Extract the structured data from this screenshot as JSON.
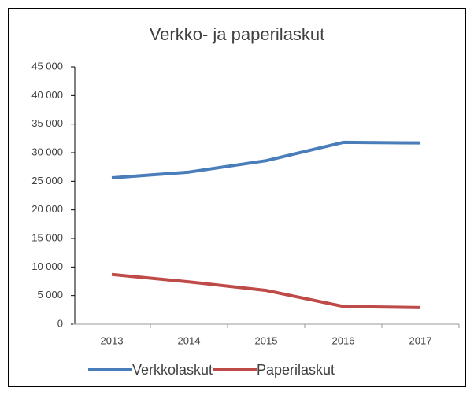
{
  "chart_data": {
    "type": "line",
    "title": "Verkko- ja paperilaskut",
    "categories": [
      "2013",
      "2014",
      "2015",
      "2016",
      "2017"
    ],
    "series": [
      {
        "name": "Verkkolaskut",
        "color": "#4a7ebb",
        "values": [
          25600,
          26600,
          28600,
          31800,
          31700
        ]
      },
      {
        "name": "Paperilaskut",
        "color": "#be4b48",
        "values": [
          8700,
          7400,
          5900,
          3100,
          2900
        ]
      }
    ],
    "ylim": [
      0,
      45000
    ],
    "yticks": [
      0,
      {
        "value": 5000,
        "label": "5 000"
      },
      {
        "value": 10000,
        "label": "10 000"
      },
      {
        "value": 15000,
        "label": "15 000"
      },
      {
        "value": 20000,
        "label": "20 000"
      },
      {
        "value": 25000,
        "label": "25 000"
      },
      {
        "value": 30000,
        "label": "30 000"
      },
      {
        "value": 35000,
        "label": "35 000"
      },
      {
        "value": 40000,
        "label": "40 000"
      },
      {
        "value": 45000,
        "label": "45 000"
      }
    ],
    "grid": false,
    "legend": "bottom"
  }
}
